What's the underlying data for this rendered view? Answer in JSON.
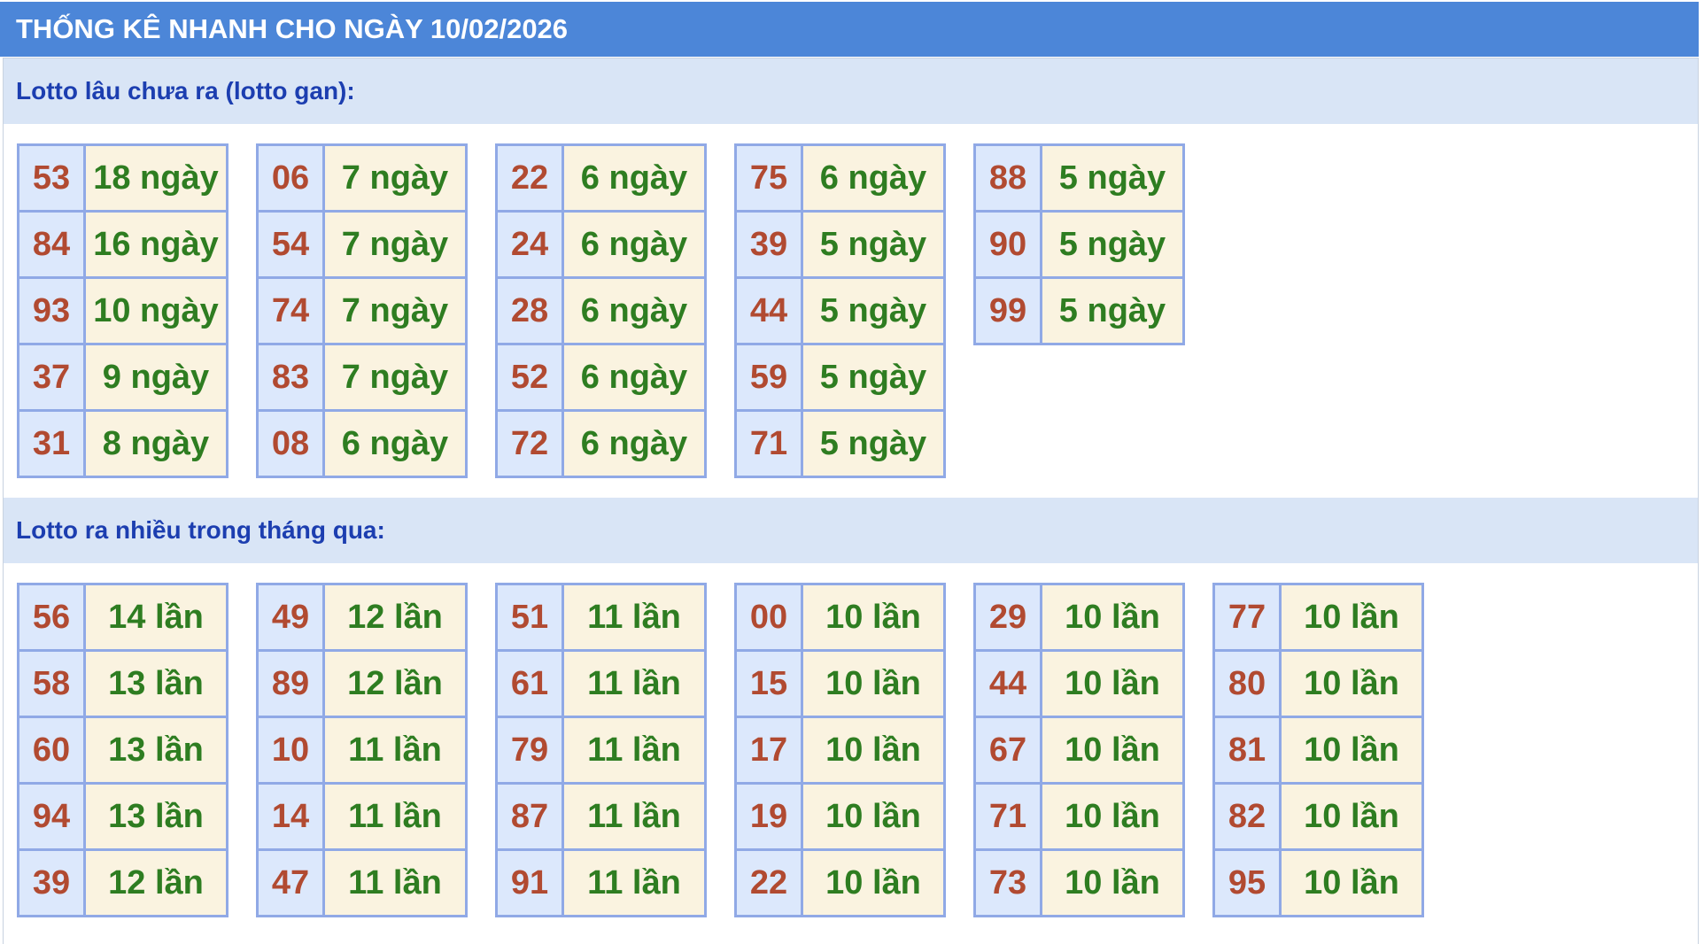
{
  "banner": {
    "title": "THỐNG KÊ NHANH CHO NGÀY 10/02/2026"
  },
  "sections": [
    {
      "heading": "Lotto lâu chưa ra (lotto gan):",
      "tables": [
        {
          "rows": [
            [
              "53",
              "18 ngày"
            ],
            [
              "84",
              "16 ngày"
            ],
            [
              "93",
              "10 ngày"
            ],
            [
              "37",
              "9 ngày"
            ],
            [
              "31",
              "8 ngày"
            ]
          ]
        },
        {
          "rows": [
            [
              "06",
              "7 ngày"
            ],
            [
              "54",
              "7 ngày"
            ],
            [
              "74",
              "7 ngày"
            ],
            [
              "83",
              "7 ngày"
            ],
            [
              "08",
              "6 ngày"
            ]
          ]
        },
        {
          "rows": [
            [
              "22",
              "6 ngày"
            ],
            [
              "24",
              "6 ngày"
            ],
            [
              "28",
              "6 ngày"
            ],
            [
              "52",
              "6 ngày"
            ],
            [
              "72",
              "6 ngày"
            ]
          ]
        },
        {
          "rows": [
            [
              "75",
              "6 ngày"
            ],
            [
              "39",
              "5 ngày"
            ],
            [
              "44",
              "5 ngày"
            ],
            [
              "59",
              "5 ngày"
            ],
            [
              "71",
              "5 ngày"
            ]
          ]
        },
        {
          "rows": [
            [
              "88",
              "5 ngày"
            ],
            [
              "90",
              "5 ngày"
            ],
            [
              "99",
              "5 ngày"
            ]
          ]
        }
      ]
    },
    {
      "heading": "Lotto ra nhiều trong tháng qua:",
      "tables": [
        {
          "rows": [
            [
              "56",
              "14 lần"
            ],
            [
              "58",
              "13 lần"
            ],
            [
              "60",
              "13 lần"
            ],
            [
              "94",
              "13 lần"
            ],
            [
              "39",
              "12 lần"
            ]
          ]
        },
        {
          "rows": [
            [
              "49",
              "12 lần"
            ],
            [
              "89",
              "12 lần"
            ],
            [
              "10",
              "11 lần"
            ],
            [
              "14",
              "11 lần"
            ],
            [
              "47",
              "11 lần"
            ]
          ]
        },
        {
          "rows": [
            [
              "51",
              "11 lần"
            ],
            [
              "61",
              "11 lần"
            ],
            [
              "79",
              "11 lần"
            ],
            [
              "87",
              "11 lần"
            ],
            [
              "91",
              "11 lần"
            ]
          ]
        },
        {
          "rows": [
            [
              "00",
              "10 lần"
            ],
            [
              "15",
              "10 lần"
            ],
            [
              "17",
              "10 lần"
            ],
            [
              "19",
              "10 lần"
            ],
            [
              "22",
              "10 lần"
            ]
          ]
        },
        {
          "rows": [
            [
              "29",
              "10 lần"
            ],
            [
              "44",
              "10 lần"
            ],
            [
              "67",
              "10 lần"
            ],
            [
              "71",
              "10 lần"
            ],
            [
              "73",
              "10 lần"
            ]
          ]
        },
        {
          "rows": [
            [
              "77",
              "10 lần"
            ],
            [
              "80",
              "10 lần"
            ],
            [
              "81",
              "10 lần"
            ],
            [
              "82",
              "10 lần"
            ],
            [
              "95",
              "10 lần"
            ]
          ]
        }
      ]
    }
  ],
  "colors": {
    "banner-bg": "#4c86d8",
    "banner-text": "#ffffff",
    "section-header-bg": "#d9e5f6",
    "section-header-text": "#1c3eb0",
    "table-border": "#90a9e6",
    "number-cell-bg": "#dce8fc",
    "value-cell-bg": "#faf3e0",
    "number-text": "#b14a31",
    "value-text": "#2e7d21",
    "container-border": "#c8d2e0",
    "page-bg": "#ffffff"
  }
}
